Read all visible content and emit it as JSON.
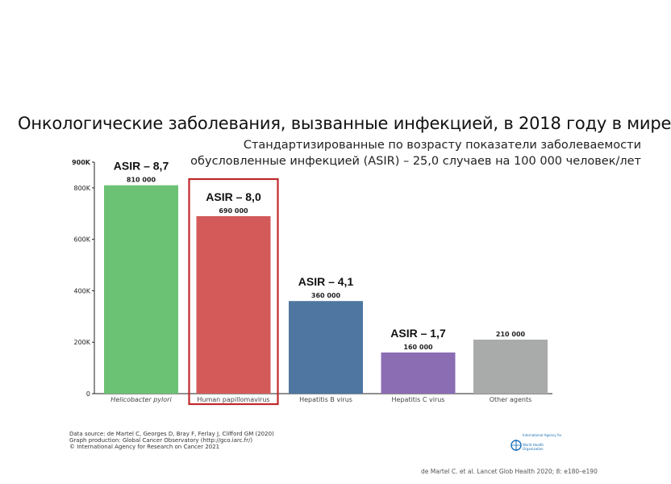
{
  "title": "Онкологические заболевания, вызванные инфекцией, в 2018 году в мире",
  "subtitle_lines": [
    "Стандартизированные по возрасту показатели заболеваемости",
    "обусловленные инфекцией (ASIR) – 25,0 случаев на 100 000 человек/лет"
  ],
  "chart_data": {
    "type": "bar",
    "categories": [
      "Helicobacter pylori",
      "Human papillomavirus",
      "Hepatitis B virus",
      "Hepatitis C virus",
      "Other agents"
    ],
    "values": [
      810000,
      690000,
      360000,
      160000,
      210000
    ],
    "value_labels": [
      "810 000",
      "690 000",
      "360 000",
      "160 000",
      "210 000"
    ],
    "colors": [
      "#6cc274",
      "#d45a5a",
      "#4e76a0",
      "#8b6db4",
      "#a9aaaa"
    ],
    "asir_labels": [
      "ASIR – 8,7",
      "ASIR – 8,0",
      "ASIR – 4,1",
      "ASIR – 1,7",
      ""
    ],
    "highlighted_category": "Human papillomavirus",
    "highlight_color": "#c0282a",
    "ylim": [
      0,
      900000
    ],
    "yticks": [
      0,
      200000,
      400000,
      600000,
      800000,
      900000
    ],
    "ytick_labels": [
      "0",
      "200K",
      "400K",
      "600K",
      "800K",
      "900K"
    ],
    "grid": false
  },
  "footer_lines": [
    "Data source: de Martel C, Georges D, Bray F, Ferlay J, Clifford GM (2020)",
    "Graph production: Global Cancer Observatory (http://gco.iarc.fr/)",
    "© International Agency for Research on Cancer 2021"
  ],
  "logo_text": [
    "International Agency for",
    "World Health",
    "Organization"
  ],
  "citation": "de Martel C. et al. Lancet Glob Health 2020; 8: e180–e190"
}
